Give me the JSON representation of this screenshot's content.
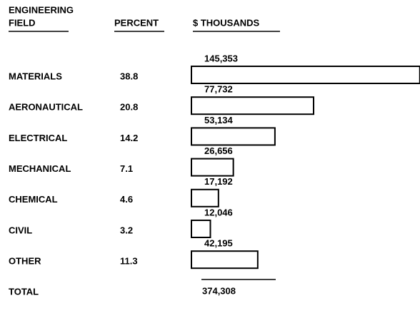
{
  "chart_data": {
    "type": "bar",
    "field_header": [
      "ENGINEERING",
      "FIELD"
    ],
    "percent_header": "PERCENT",
    "value_header": "$ THOUSANDS",
    "categories": [
      "MATERIALS",
      "AERONAUTICAL",
      "ELECTRICAL",
      "MECHANICAL",
      "CHEMICAL",
      "CIVIL",
      "OTHER"
    ],
    "percents": [
      38.8,
      20.8,
      14.2,
      7.1,
      4.6,
      3.2,
      11.3
    ],
    "values": [
      145353,
      77732,
      53134,
      26656,
      17192,
      12046,
      42195
    ],
    "value_labels": [
      "145,353",
      "77,732",
      "53,134",
      "26,656",
      "17,192",
      "12,046",
      "42,195"
    ],
    "color": "#000000",
    "total_label": "TOTAL",
    "total_value": 374308,
    "total_value_label": "374,308"
  }
}
